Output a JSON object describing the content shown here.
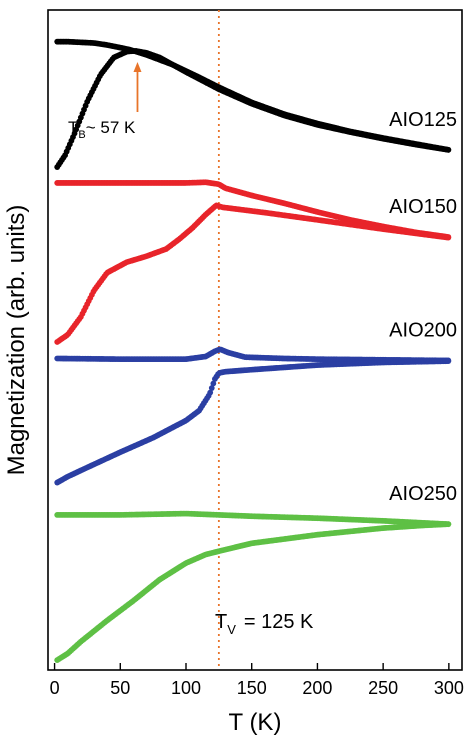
{
  "chart_data": {
    "type": "scatter",
    "xlabel": "T (K)",
    "ylabel": "Magnetization (arb. units)",
    "xlim": [
      -5,
      310
    ],
    "ylim": [
      0,
      1
    ],
    "x_ticks": [
      0,
      50,
      100,
      150,
      200,
      250,
      300
    ],
    "y_ticks_visible": false,
    "grid": false,
    "legend": "none",
    "vline": {
      "x": 125,
      "color": "#e8742a",
      "style": "dotted"
    },
    "annotations": {
      "tb_main": "T",
      "tb_sub": "B",
      "tb_value": "~ 57 K",
      "tb_arrow_x": 57,
      "tv_main": "T",
      "tv_sub": "V",
      "tv_value": "= 125 K"
    },
    "series": [
      {
        "name": "AIO125",
        "color": "#000000",
        "branches": [
          {
            "x": [
              2,
              10,
              20,
              30,
              40,
              50,
              57,
              70,
              90,
              110,
              125,
              150,
              175,
              200,
              225,
              250,
              275,
              300
            ],
            "y": [
              0.952,
              0.952,
              0.951,
              0.95,
              0.947,
              0.943,
              0.94,
              0.932,
              0.917,
              0.898,
              0.883,
              0.86,
              0.842,
              0.828,
              0.816,
              0.806,
              0.797,
              0.788
            ]
          },
          {
            "x": [
              2,
              8,
              15,
              25,
              35,
              45,
              55,
              62,
              70,
              80,
              100,
              125,
              150,
              175,
              200,
              225,
              250,
              275,
              300
            ],
            "y": [
              0.762,
              0.78,
              0.812,
              0.862,
              0.902,
              0.928,
              0.937,
              0.938,
              0.935,
              0.928,
              0.906,
              0.88,
              0.858,
              0.84,
              0.826,
              0.815,
              0.805,
              0.796,
              0.788
            ]
          }
        ]
      },
      {
        "name": "AIO150",
        "color": "#e8242a",
        "branches": [
          {
            "x": [
              2,
              25,
              50,
              75,
              100,
              115,
              125,
              130,
              150,
              175,
              200,
              225,
              250,
              275,
              300
            ],
            "y": [
              0.738,
              0.738,
              0.738,
              0.738,
              0.738,
              0.739,
              0.736,
              0.73,
              0.719,
              0.707,
              0.694,
              0.682,
              0.672,
              0.663,
              0.656
            ]
          },
          {
            "x": [
              2,
              10,
              20,
              30,
              40,
              55,
              70,
              85,
              95,
              105,
              115,
              123,
              128,
              140,
              160,
              200,
              250,
              300
            ],
            "y": [
              0.497,
              0.508,
              0.535,
              0.575,
              0.602,
              0.618,
              0.627,
              0.638,
              0.653,
              0.67,
              0.69,
              0.704,
              0.701,
              0.698,
              0.693,
              0.682,
              0.668,
              0.655
            ]
          }
        ]
      },
      {
        "name": "AIO200",
        "color": "#2b3fa3",
        "branches": [
          {
            "x": [
              2,
              50,
              100,
              115,
              122,
              126,
              132,
              145,
              175,
              200,
              250,
              300
            ],
            "y": [
              0.472,
              0.471,
              0.471,
              0.475,
              0.483,
              0.486,
              0.481,
              0.474,
              0.472,
              0.471,
              0.47,
              0.469
            ]
          },
          {
            "x": [
              2,
              10,
              25,
              50,
              75,
              100,
              110,
              118,
              122,
              125,
              130,
              150,
              200,
              250,
              300
            ],
            "y": [
              0.284,
              0.293,
              0.307,
              0.33,
              0.352,
              0.378,
              0.393,
              0.418,
              0.441,
              0.45,
              0.452,
              0.455,
              0.462,
              0.466,
              0.468
            ]
          }
        ]
      },
      {
        "name": "AIO250",
        "color": "#5ec045",
        "branches": [
          {
            "x": [
              2,
              50,
              100,
              125,
              150,
              200,
              250,
              280,
              300
            ],
            "y": [
              0.235,
              0.235,
              0.237,
              0.235,
              0.233,
              0.23,
              0.226,
              0.223,
              0.221
            ]
          },
          {
            "x": [
              2,
              10,
              20,
              40,
              60,
              80,
              100,
              115,
              125,
              150,
              200,
              250,
              280,
              300
            ],
            "y": [
              0.015,
              0.025,
              0.043,
              0.075,
              0.105,
              0.137,
              0.162,
              0.175,
              0.18,
              0.192,
              0.205,
              0.215,
              0.219,
              0.221
            ]
          }
        ]
      }
    ]
  }
}
